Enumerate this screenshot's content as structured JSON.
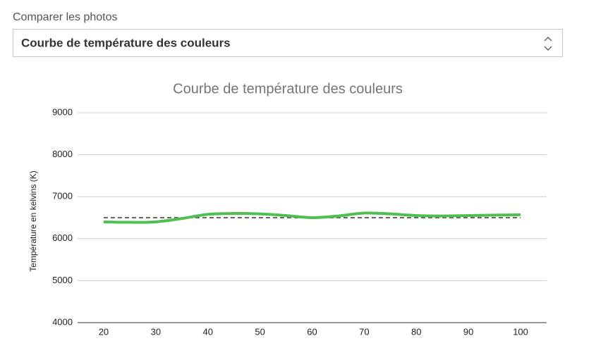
{
  "label": "Comparer les photos",
  "select": "Courbe de température des couleurs",
  "chart_data": {
    "type": "line",
    "title": "Courbe de température des couleurs",
    "y_label": "Température en kelvins (K)",
    "x": [
      20,
      25,
      30,
      35,
      40,
      45,
      50,
      55,
      60,
      65,
      70,
      75,
      80,
      85,
      90,
      95,
      100
    ],
    "series": [
      {
        "color": "#4fbf50",
        "dash": false,
        "values": [
          6400,
          6390,
          6400,
          6480,
          6580,
          6600,
          6590,
          6550,
          6500,
          6540,
          6610,
          6590,
          6550,
          6540,
          6550,
          6560,
          6570
        ]
      },
      {
        "color": "#666666",
        "dash": true,
        "values": [
          6500,
          6500,
          6500,
          6500,
          6500,
          6500,
          6500,
          6500,
          6500,
          6500,
          6500,
          6500,
          6500,
          6500,
          6500,
          6500,
          6500
        ]
      }
    ],
    "xlim": [
      15,
      105
    ],
    "xticks": [
      20,
      30,
      40,
      50,
      60,
      70,
      80,
      90,
      100
    ],
    "ylim": [
      4000,
      9000
    ],
    "yticks": [
      4000,
      5000,
      6000,
      7000,
      8000,
      9000
    ],
    "grid": true
  }
}
